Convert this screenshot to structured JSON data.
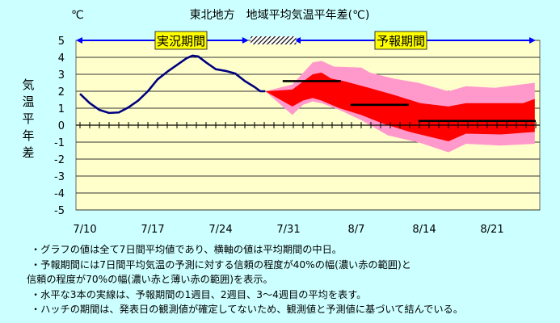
{
  "chart_data": {
    "type": "line",
    "title": "東北地方　地域平均気温平年差(℃)",
    "unit_label": "℃",
    "ylabel": "気温平年差",
    "ylim": [
      -5,
      5
    ],
    "y_ticks": [
      "5",
      "4",
      "3",
      "2",
      "1",
      "0",
      "-1",
      "-2",
      "-3",
      "-4",
      "-5"
    ],
    "x_origin": "7/10",
    "x_unit": "days since 7/10",
    "xlim": [
      0,
      47
    ],
    "x_ticks": [
      {
        "day": 0,
        "label": "7/10"
      },
      {
        "day": 7,
        "label": "7/17"
      },
      {
        "day": 14,
        "label": "7/24"
      },
      {
        "day": 21,
        "label": "7/31"
      },
      {
        "day": 28,
        "label": "8/7"
      },
      {
        "day": 35,
        "label": "8/14"
      },
      {
        "day": 42,
        "label": "8/21"
      }
    ],
    "period_labels": {
      "observed": "実況期間",
      "forecast": "予報期間"
    },
    "periods": {
      "observed": [
        0,
        17.4
      ],
      "hatch": [
        17.6,
        22.3
      ],
      "forecast": [
        22.5,
        47
      ]
    },
    "observed": [
      [
        0,
        1.85
      ],
      [
        1,
        1.3
      ],
      [
        2,
        0.9
      ],
      [
        3,
        0.72
      ],
      [
        4,
        0.75
      ],
      [
        5,
        1.05
      ],
      [
        6,
        1.45
      ],
      [
        7,
        2.0
      ],
      [
        8,
        2.7
      ],
      [
        9,
        3.15
      ],
      [
        10,
        3.55
      ],
      [
        11,
        3.95
      ],
      [
        11.6,
        4.1
      ],
      [
        12.2,
        4.05
      ],
      [
        13,
        3.7
      ],
      [
        14,
        3.3
      ],
      [
        15,
        3.2
      ],
      [
        16,
        3.05
      ],
      [
        17,
        2.6
      ],
      [
        18,
        2.25
      ],
      [
        18.6,
        2.0
      ],
      [
        19.1,
        2.0
      ]
    ],
    "band70_upper": [
      [
        19.1,
        2.0
      ],
      [
        21.9,
        2.4
      ],
      [
        24,
        3.7
      ],
      [
        24.9,
        3.8
      ],
      [
        26.2,
        3.45
      ],
      [
        29,
        3.4
      ],
      [
        29.9,
        3.1
      ],
      [
        32.3,
        2.75
      ],
      [
        34.9,
        2.5
      ],
      [
        38,
        2.0
      ],
      [
        39.8,
        2.3
      ],
      [
        42.8,
        2.2
      ],
      [
        46.9,
        2.5
      ]
    ],
    "band40_upper": [
      [
        19.1,
        2.0
      ],
      [
        21.9,
        2.1
      ],
      [
        24,
        3.0
      ],
      [
        24.9,
        3.1
      ],
      [
        25.9,
        2.75
      ],
      [
        27.2,
        2.6
      ],
      [
        29.8,
        2.2
      ],
      [
        32.3,
        1.8
      ],
      [
        35.1,
        1.3
      ],
      [
        38,
        1.1
      ],
      [
        39.8,
        1.3
      ],
      [
        41.5,
        1.3
      ],
      [
        45.7,
        1.3
      ],
      [
        46.9,
        1.55
      ]
    ],
    "band40_lower": [
      [
        19.1,
        2.0
      ],
      [
        21.9,
        1.1
      ],
      [
        23,
        1.45
      ],
      [
        24,
        1.6
      ],
      [
        24.9,
        1.45
      ],
      [
        26.75,
        1.0
      ],
      [
        29,
        0.6
      ],
      [
        31.2,
        0.1
      ],
      [
        34,
        -0.4
      ],
      [
        38,
        -0.95
      ],
      [
        39.8,
        -0.5
      ],
      [
        43.4,
        -0.55
      ],
      [
        46.9,
        -0.4
      ]
    ],
    "band70_lower": [
      [
        19.1,
        2.0
      ],
      [
        21.9,
        0.6
      ],
      [
        23,
        1.2
      ],
      [
        24,
        1.4
      ],
      [
        24.9,
        1.3
      ],
      [
        26.75,
        0.9
      ],
      [
        29,
        0.3
      ],
      [
        31.75,
        -0.6
      ],
      [
        35.1,
        -1.05
      ],
      [
        38,
        -1.6
      ],
      [
        39.8,
        -1.1
      ],
      [
        43.4,
        -1.2
      ],
      [
        46.9,
        -1.1
      ]
    ],
    "weekly_means": [
      {
        "name": "week1",
        "from": 20.9,
        "to": 26.9,
        "value": 2.6
      },
      {
        "name": "week2",
        "from": 27.9,
        "to": 33.9,
        "value": 1.2
      },
      {
        "name": "week3-4",
        "from": 34.9,
        "to": 47,
        "value": 0.25
      }
    ],
    "colors": {
      "observed": "#000080",
      "band40": "#ff0000",
      "band70": "#ff99cc",
      "mean": "#000000",
      "plot_bg": "#ffffcc",
      "arrow": "#0000ff",
      "label_box": "#ffff00"
    }
  },
  "notes": [
    "・グラフの値は全て7日間平均値であり、横軸の値は平均期間の中日。",
    "・予報期間には7日間平均気温の予測に対する信頼の程度が40%の幅(濃い赤の範囲)と",
    "信頼の程度が70%の幅(濃い赤と薄い赤の範囲)を表示。",
    "・水平な3本の実線は、予報期間の1週目、2週目、3～4週目の平均を表す。",
    "・ハッチの期間は、発表日の観測値が確定してないため、観測値と予測値に基づいて結んでいる。"
  ]
}
